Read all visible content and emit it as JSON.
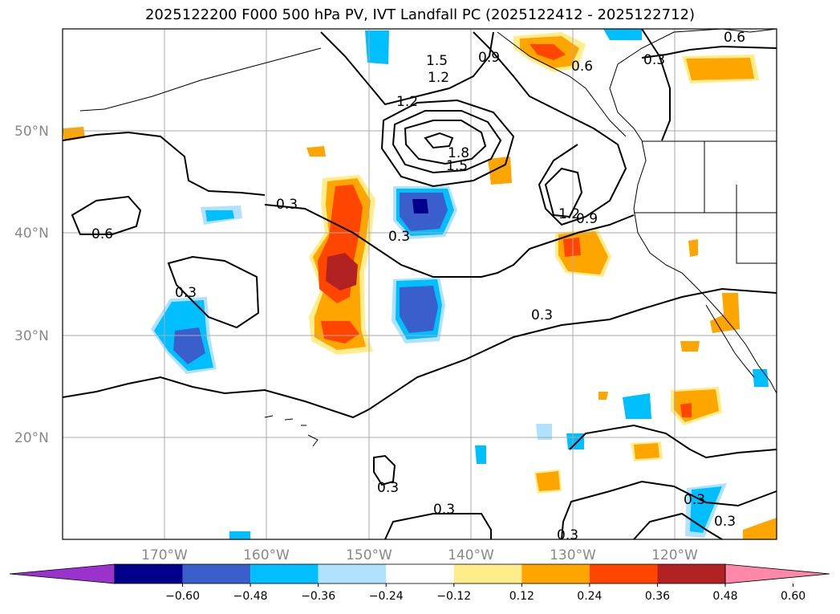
{
  "title": "2025122200 F000 500 hPa PV, IVT Landfall PC (2025122412 - 2025122712)",
  "lat_labels": [
    "50°N",
    "40°N",
    "30°N",
    "20°N"
  ],
  "lon_labels": [
    "170°W",
    "160°W",
    "150°W",
    "140°W",
    "130°W",
    "120°W"
  ],
  "colorbar": {
    "ticks": [
      "−0.60",
      "−0.48",
      "−0.36",
      "−0.24",
      "−0.12",
      "0.12",
      "0.24",
      "0.36",
      "0.48",
      "0.60"
    ],
    "colors": [
      "#9933cc",
      "#00008b",
      "#3a5fcd",
      "#00bfff",
      "#b0e2ff",
      "#ffffff",
      "#ffec8b",
      "#ffa500",
      "#ff4500",
      "#b22222",
      "#ff88aa"
    ]
  },
  "contour_labels": [
    "1.5",
    "0.9",
    "0.6",
    "0.3",
    "1.2",
    "1.2",
    "1.8",
    "1.5",
    "0.3",
    "0.6",
    "1.2",
    "0.9",
    "0.3",
    "0.3",
    "0.3",
    "0.3",
    "0.3",
    "0.3",
    "0.3",
    "0.3",
    "0.6"
  ],
  "colors": {
    "gridline": "#aaaaaa",
    "coastline": "#000000",
    "contour": "#000000"
  }
}
